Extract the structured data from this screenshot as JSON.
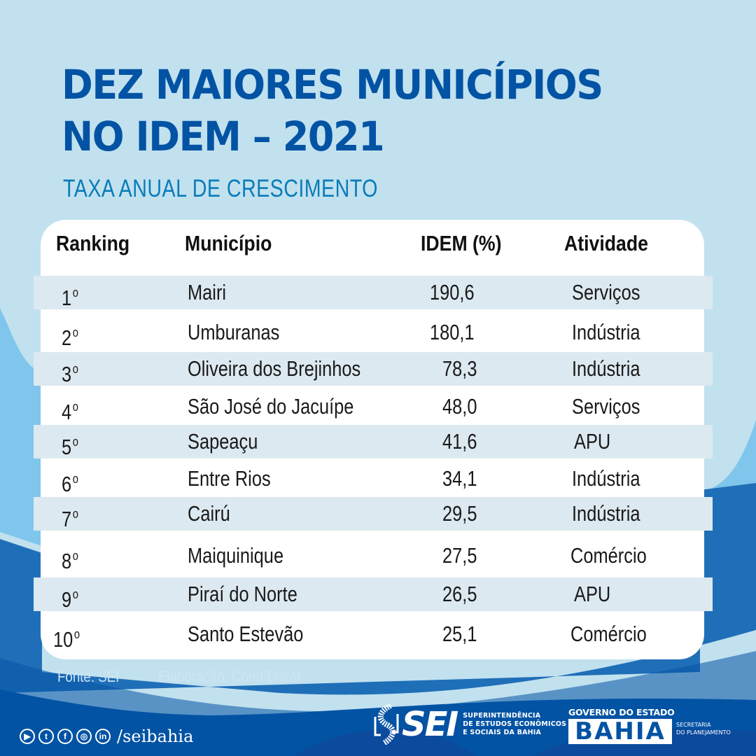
{
  "header": {
    "title_line1": "DEZ MAIORES MUNICÍPIOS",
    "title_line2": "NO IDEM – 2021",
    "subtitle": "TAXA ANUAL DE CRESCIMENTO"
  },
  "table": {
    "columns": [
      "Ranking",
      "Município",
      "IDEM (%)",
      "Atividade"
    ],
    "rows": [
      {
        "rank": "1",
        "municipio": "Mairi",
        "idem": "190,6",
        "atividade": "Serviços"
      },
      {
        "rank": "2",
        "municipio": "Umburanas",
        "idem": "180,1",
        "atividade": "Indústria"
      },
      {
        "rank": "3",
        "municipio": "Oliveira dos Brejinhos",
        "idem": "78,3",
        "atividade": "Indústria"
      },
      {
        "rank": "4",
        "municipio": "São José do Jacuípe",
        "idem": "48,0",
        "atividade": "Serviços"
      },
      {
        "rank": "5",
        "municipio": "Sapeaçu",
        "idem": "41,6",
        "atividade": "APU"
      },
      {
        "rank": "6",
        "municipio": "Entre Rios",
        "idem": "34,1",
        "atividade": "Indústria"
      },
      {
        "rank": "7",
        "municipio": "Cairú",
        "idem": "29,5",
        "atividade": "Indústria"
      },
      {
        "rank": "8",
        "municipio": "Maiquinique",
        "idem": "27,5",
        "atividade": "Comércio"
      },
      {
        "rank": "9",
        "municipio": "Piraí do Norte",
        "idem": "26,5",
        "atividade": "APU"
      },
      {
        "rank": "10",
        "municipio": "Santo Estevão",
        "idem": "25,1",
        "atividade": "Comércio"
      }
    ],
    "ordinal_mark": "o"
  },
  "footer": {
    "source": "Fonte: SEI",
    "elaboration": "Elaboração: Coref/Distat",
    "social_icons": [
      "youtube-icon",
      "twitter-icon",
      "facebook-icon",
      "instagram-icon",
      "linkedin-icon"
    ],
    "social_glyphs": [
      "▶",
      "t",
      "f",
      "◎",
      "in"
    ],
    "handle": "/seibahia",
    "sei_logo": {
      "word": "SEI",
      "desc_line1": "SUPERINTENDÊNCIA",
      "desc_line2": "DE ESTUDOS ECONÔMICOS",
      "desc_line3": "E SOCIAIS DA BAHIA"
    },
    "gov_logo": {
      "top": "GOVERNO DO ESTADO",
      "name": "BAHIA",
      "sec_line1": "SECRETARIA",
      "sec_line2": "DO PLANEJAMENTO"
    }
  },
  "colors": {
    "title": "#0353a4",
    "subtitle": "#0b7cb8",
    "background_light": "#c1e1ef",
    "background_mid": "#80c6ec",
    "background_dark": "#1f6fb8",
    "background_darkest": "#0353a4",
    "row_shade": "#dce9f0"
  }
}
